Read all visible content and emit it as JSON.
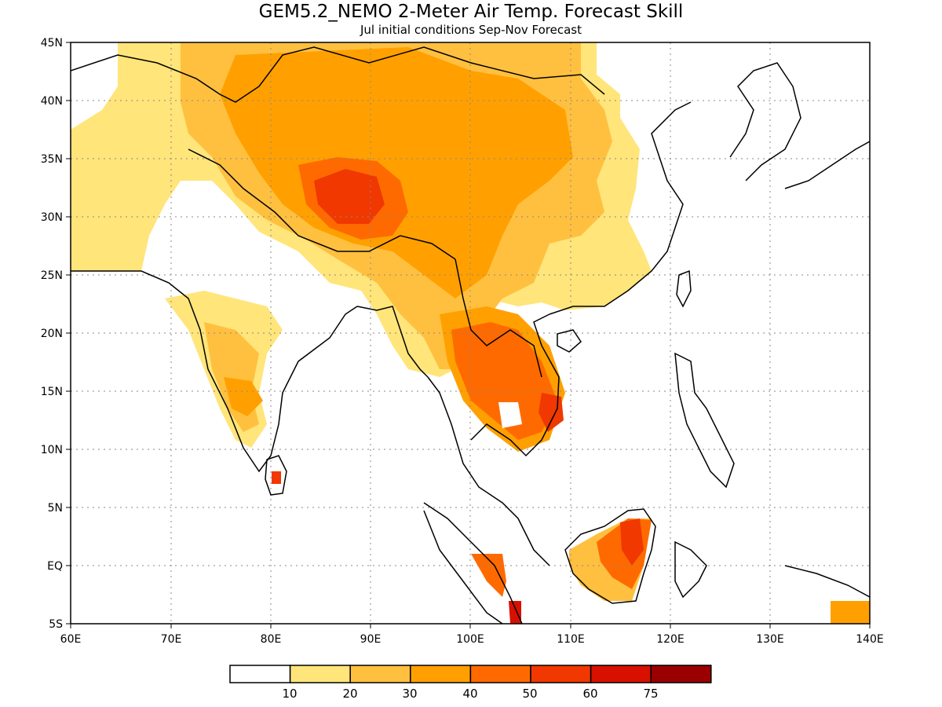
{
  "title": "GEM5.2_NEMO 2-Meter Air Temp. Forecast Skill",
  "subtitle": "Jul initial conditions   Sep-Nov Forecast",
  "map": {
    "lon_range": [
      60,
      140
    ],
    "lat_range": [
      -5,
      45
    ],
    "lon_labels": [
      "60E",
      "70E",
      "80E",
      "90E",
      "100E",
      "110E",
      "120E",
      "130E",
      "140E"
    ],
    "lat_labels": [
      "45N",
      "40N",
      "35N",
      "30N",
      "25N",
      "20N",
      "15N",
      "10N",
      "5N",
      "EQ",
      "5S"
    ],
    "grid": "dotted",
    "region_colors": {
      "white": "#ffffff",
      "10-20": "#ffe57a",
      "20-30": "#ffc040",
      "30-40": "#ffa000",
      "40-50": "#ff6a00",
      "50-60": "#f03800",
      "60-75": "#d81000",
      "75+": "#9a0000"
    }
  },
  "colorbar": {
    "labels": [
      "10",
      "20",
      "30",
      "40",
      "50",
      "60",
      "75"
    ],
    "colors": [
      "#ffffff",
      "#ffe57a",
      "#ffc040",
      "#ffa000",
      "#ff6a00",
      "#f03800",
      "#d81000",
      "#9a0000"
    ]
  }
}
